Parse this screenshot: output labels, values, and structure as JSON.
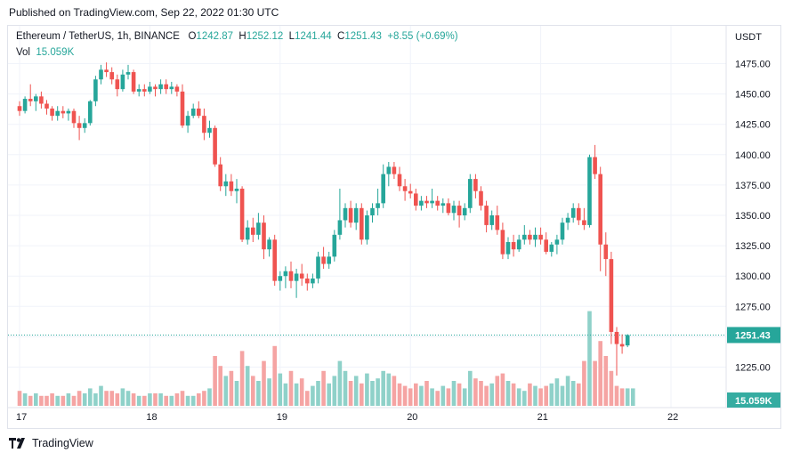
{
  "published": "Published on TradingView.com, Sep 22, 2022 01:30 UTC",
  "footer": {
    "brand": "TradingView",
    "logo_icon": "tradingview-logo-icon"
  },
  "legend": {
    "symbol": "Ethereum / TetherUS, 1h, BINANCE",
    "o_label": "O",
    "o_value": "1242.87",
    "h_label": "H",
    "h_value": "1252.12",
    "l_label": "L",
    "l_value": "1241.44",
    "c_label": "C",
    "c_value": "1251.43",
    "change": "+8.55 (+0.69%)",
    "vol_label": "Vol",
    "vol_value": "15.059K"
  },
  "colors": {
    "up": "#26a69a",
    "down": "#ef5350",
    "up_vol": "#8fd1c9",
    "down_vol": "#f5a4a3",
    "grid": "#f0f3fa",
    "last": "#26a69a"
  },
  "chart_data": {
    "type": "candlestick",
    "currency": "USDT",
    "ylim": [
      1200,
      1500
    ],
    "y_ticks": [
      1225,
      1250,
      1275,
      1300,
      1325,
      1350,
      1375,
      1400,
      1425,
      1450,
      1475
    ],
    "y_tick_labels": [
      "1225.00",
      "1250.00",
      "1275.00",
      "1300.00",
      "1325.00",
      "1350.00",
      "1375.00",
      "1400.00",
      "1425.00",
      "1450.00",
      "1475.00"
    ],
    "x_labels": [
      {
        "label": "17",
        "index": 0
      },
      {
        "label": "18",
        "index": 24
      },
      {
        "label": "19",
        "index": 48
      },
      {
        "label": "20",
        "index": 72
      },
      {
        "label": "21",
        "index": 96
      },
      {
        "label": "22",
        "index": 120
      }
    ],
    "last_price": "1251.43",
    "last_volume": "15.059K",
    "candles": [
      [
        1440,
        1444,
        1432,
        1436
      ],
      [
        1436,
        1448,
        1434,
        1446
      ],
      [
        1446,
        1458,
        1440,
        1444
      ],
      [
        1444,
        1450,
        1436,
        1448
      ],
      [
        1448,
        1452,
        1438,
        1442
      ],
      [
        1442,
        1445,
        1433,
        1438
      ],
      [
        1438,
        1440,
        1428,
        1432
      ],
      [
        1432,
        1440,
        1428,
        1436
      ],
      [
        1436,
        1440,
        1430,
        1434
      ],
      [
        1434,
        1438,
        1428,
        1436
      ],
      [
        1436,
        1438,
        1422,
        1426
      ],
      [
        1426,
        1432,
        1412,
        1422
      ],
      [
        1422,
        1430,
        1418,
        1426
      ],
      [
        1426,
        1445,
        1424,
        1444
      ],
      [
        1444,
        1465,
        1440,
        1462
      ],
      [
        1462,
        1474,
        1458,
        1470
      ],
      [
        1470,
        1476,
        1464,
        1468
      ],
      [
        1468,
        1472,
        1458,
        1462
      ],
      [
        1462,
        1466,
        1448,
        1454
      ],
      [
        1454,
        1470,
        1452,
        1466
      ],
      [
        1466,
        1474,
        1462,
        1468
      ],
      [
        1468,
        1470,
        1450,
        1452
      ],
      [
        1452,
        1458,
        1448,
        1454
      ],
      [
        1454,
        1458,
        1448,
        1452
      ],
      [
        1452,
        1460,
        1450,
        1456
      ],
      [
        1456,
        1458,
        1448,
        1454
      ],
      [
        1454,
        1462,
        1450,
        1458
      ],
      [
        1458,
        1462,
        1450,
        1454
      ],
      [
        1454,
        1460,
        1450,
        1456
      ],
      [
        1456,
        1458,
        1448,
        1452
      ],
      [
        1452,
        1458,
        1422,
        1424
      ],
      [
        1424,
        1436,
        1418,
        1432
      ],
      [
        1432,
        1442,
        1430,
        1438
      ],
      [
        1438,
        1444,
        1430,
        1432
      ],
      [
        1432,
        1438,
        1412,
        1418
      ],
      [
        1418,
        1428,
        1414,
        1422
      ],
      [
        1422,
        1424,
        1390,
        1392
      ],
      [
        1392,
        1398,
        1370,
        1374
      ],
      [
        1374,
        1384,
        1366,
        1378
      ],
      [
        1378,
        1384,
        1366,
        1370
      ],
      [
        1370,
        1380,
        1360,
        1372
      ],
      [
        1372,
        1374,
        1328,
        1330
      ],
      [
        1330,
        1346,
        1326,
        1340
      ],
      [
        1340,
        1348,
        1328,
        1334
      ],
      [
        1334,
        1352,
        1330,
        1344
      ],
      [
        1344,
        1350,
        1314,
        1322
      ],
      [
        1322,
        1332,
        1316,
        1330
      ],
      [
        1330,
        1334,
        1292,
        1296
      ],
      [
        1296,
        1304,
        1288,
        1300
      ],
      [
        1300,
        1308,
        1290,
        1304
      ],
      [
        1304,
        1312,
        1290,
        1296
      ],
      [
        1296,
        1306,
        1282,
        1302
      ],
      [
        1302,
        1310,
        1292,
        1298
      ],
      [
        1298,
        1302,
        1288,
        1294
      ],
      [
        1294,
        1302,
        1290,
        1298
      ],
      [
        1298,
        1320,
        1294,
        1316
      ],
      [
        1316,
        1324,
        1306,
        1310
      ],
      [
        1310,
        1320,
        1306,
        1316
      ],
      [
        1316,
        1338,
        1312,
        1334
      ],
      [
        1334,
        1372,
        1330,
        1346
      ],
      [
        1346,
        1360,
        1340,
        1356
      ],
      [
        1356,
        1362,
        1340,
        1344
      ],
      [
        1344,
        1360,
        1338,
        1356
      ],
      [
        1356,
        1360,
        1326,
        1330
      ],
      [
        1330,
        1354,
        1326,
        1350
      ],
      [
        1350,
        1360,
        1344,
        1356
      ],
      [
        1356,
        1372,
        1350,
        1360
      ],
      [
        1360,
        1392,
        1356,
        1384
      ],
      [
        1384,
        1394,
        1374,
        1390
      ],
      [
        1390,
        1394,
        1380,
        1384
      ],
      [
        1384,
        1390,
        1370,
        1374
      ],
      [
        1374,
        1380,
        1362,
        1370
      ],
      [
        1370,
        1376,
        1364,
        1368
      ],
      [
        1368,
        1372,
        1354,
        1358
      ],
      [
        1358,
        1366,
        1354,
        1362
      ],
      [
        1362,
        1366,
        1356,
        1360
      ],
      [
        1360,
        1372,
        1356,
        1362
      ],
      [
        1362,
        1366,
        1354,
        1358
      ],
      [
        1358,
        1364,
        1352,
        1360
      ],
      [
        1360,
        1364,
        1350,
        1352
      ],
      [
        1352,
        1362,
        1346,
        1358
      ],
      [
        1358,
        1362,
        1340,
        1350
      ],
      [
        1350,
        1360,
        1346,
        1356
      ],
      [
        1356,
        1384,
        1352,
        1380
      ],
      [
        1380,
        1384,
        1364,
        1370
      ],
      [
        1370,
        1374,
        1354,
        1358
      ],
      [
        1358,
        1362,
        1336,
        1342
      ],
      [
        1342,
        1354,
        1338,
        1350
      ],
      [
        1350,
        1358,
        1334,
        1338
      ],
      [
        1338,
        1344,
        1314,
        1318
      ],
      [
        1318,
        1332,
        1314,
        1328
      ],
      [
        1328,
        1334,
        1316,
        1322
      ],
      [
        1322,
        1334,
        1320,
        1330
      ],
      [
        1330,
        1342,
        1326,
        1334
      ],
      [
        1334,
        1338,
        1326,
        1330
      ],
      [
        1330,
        1340,
        1324,
        1334
      ],
      [
        1334,
        1340,
        1326,
        1330
      ],
      [
        1330,
        1336,
        1318,
        1320
      ],
      [
        1320,
        1328,
        1316,
        1326
      ],
      [
        1326,
        1334,
        1318,
        1330
      ],
      [
        1330,
        1348,
        1326,
        1344
      ],
      [
        1344,
        1352,
        1338,
        1348
      ],
      [
        1348,
        1360,
        1344,
        1356
      ],
      [
        1356,
        1360,
        1342,
        1346
      ],
      [
        1346,
        1356,
        1338,
        1342
      ],
      [
        1342,
        1400,
        1340,
        1398
      ],
      [
        1398,
        1408,
        1380,
        1384
      ],
      [
        1384,
        1390,
        1304,
        1326
      ],
      [
        1326,
        1336,
        1300,
        1314
      ],
      [
        1314,
        1320,
        1244,
        1254
      ],
      [
        1254,
        1258,
        1218,
        1244
      ],
      [
        1244,
        1252,
        1236,
        1242
      ],
      [
        1242.87,
        1252.12,
        1241.44,
        1251.43
      ]
    ],
    "volumes": [
      6,
      5,
      4,
      5,
      4,
      4,
      5,
      4,
      4,
      5,
      4,
      6,
      5,
      7,
      5,
      8,
      6,
      6,
      5,
      7,
      6,
      5,
      4,
      4,
      5,
      5,
      5,
      4,
      4,
      5,
      6,
      4,
      4,
      5,
      6,
      7,
      20,
      16,
      12,
      14,
      10,
      22,
      16,
      12,
      10,
      18,
      11,
      24,
      13,
      9,
      14,
      9,
      11,
      6,
      8,
      10,
      14,
      9,
      12,
      18,
      14,
      10,
      12,
      9,
      13,
      10,
      11,
      14,
      13,
      12,
      9,
      8,
      7,
      9,
      8,
      10,
      7,
      6,
      8,
      7,
      10,
      9,
      7,
      14,
      11,
      10,
      8,
      9,
      12,
      13,
      10,
      9,
      7,
      6,
      9,
      8,
      7,
      8,
      9,
      11,
      8,
      12,
      10,
      9,
      18,
      38,
      18,
      26,
      20,
      14,
      8,
      7,
      7,
      7
    ]
  }
}
